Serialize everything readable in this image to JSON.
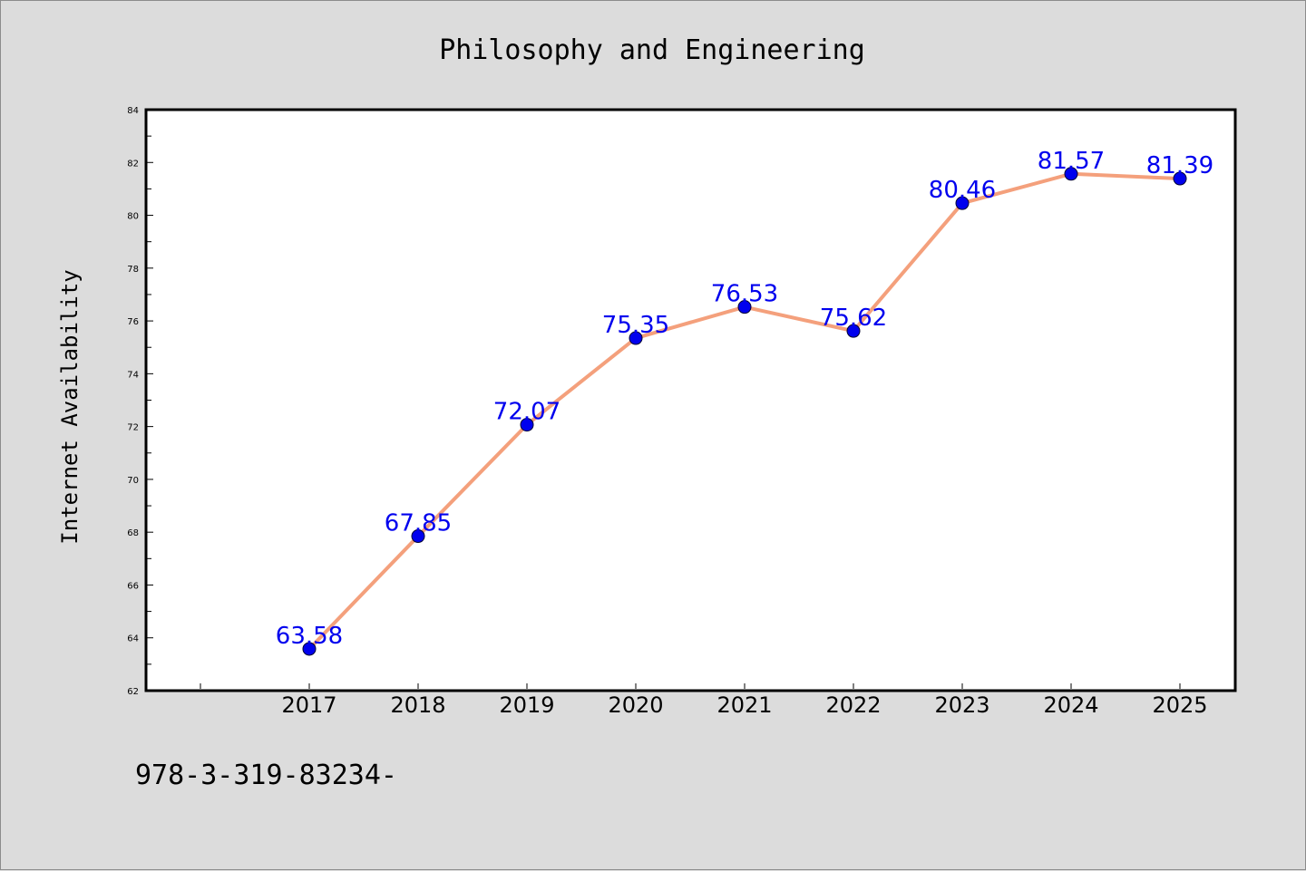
{
  "chart_data": {
    "type": "line",
    "title": "Philosophy and Engineering",
    "ylabel": "Internet Availability",
    "xlabel": "",
    "categories": [
      "2017",
      "2018",
      "2019",
      "2020",
      "2021",
      "2022",
      "2023",
      "2024",
      "2025"
    ],
    "series": [
      {
        "values": [
          63.58,
          67.85,
          72.07,
          75.35,
          76.53,
          75.62,
          80.46,
          81.57,
          81.39
        ],
        "labels": [
          "63.58",
          "67.85",
          "72.07",
          "75.35",
          "76.53",
          "75.62",
          "80.46",
          "81.57",
          "81.39"
        ],
        "line_color": "#f4a07c",
        "marker_color": "#0000ee",
        "label_color": "#0000ee"
      }
    ],
    "ylim": [
      62,
      84
    ],
    "yticks": [
      62,
      64,
      66,
      68,
      70,
      72,
      74,
      76,
      78,
      80,
      82,
      84
    ],
    "grid": false,
    "legend": "none"
  },
  "annotation": "978-3-319-83234-",
  "colors": {
    "background": "#dcdcdc",
    "plot_background": "#ffffff",
    "axis": "#000000"
  }
}
